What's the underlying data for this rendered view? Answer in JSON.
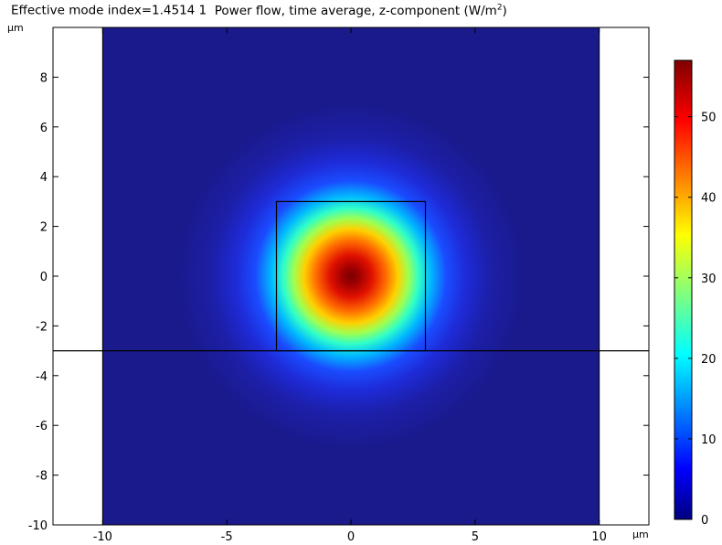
{
  "chart_data": {
    "type": "heatmap",
    "title_left": "Effective mode index=1.4514 1",
    "title_main": "Power flow, time average, z-component (W/m",
    "title_sup": "2",
    "title_end": ")",
    "x_unit": "µm",
    "y_unit": "µm",
    "xlim": [
      -12,
      12
    ],
    "ylim": [
      -10,
      10
    ],
    "x_ticks": [
      -10,
      -5,
      0,
      5,
      10
    ],
    "y_ticks": [
      -10,
      -8,
      -6,
      -4,
      -2,
      0,
      2,
      4,
      6,
      8
    ],
    "domain_x": [
      -10,
      10
    ],
    "domain_y": [
      -10,
      10
    ],
    "core_x": [
      -3,
      3
    ],
    "core_y": [
      -3,
      3
    ],
    "interface_y": -3,
    "field": {
      "peak": 57,
      "center_x": 0,
      "center_y": 0,
      "width_um": 2.1
    },
    "colorbar": {
      "min": 0,
      "max": 57,
      "ticks": [
        0,
        10,
        20,
        30,
        40,
        50
      ],
      "colormap": "jet"
    },
    "colors": {
      "background_field": "#1a1a8c",
      "outline": "#000000"
    }
  }
}
